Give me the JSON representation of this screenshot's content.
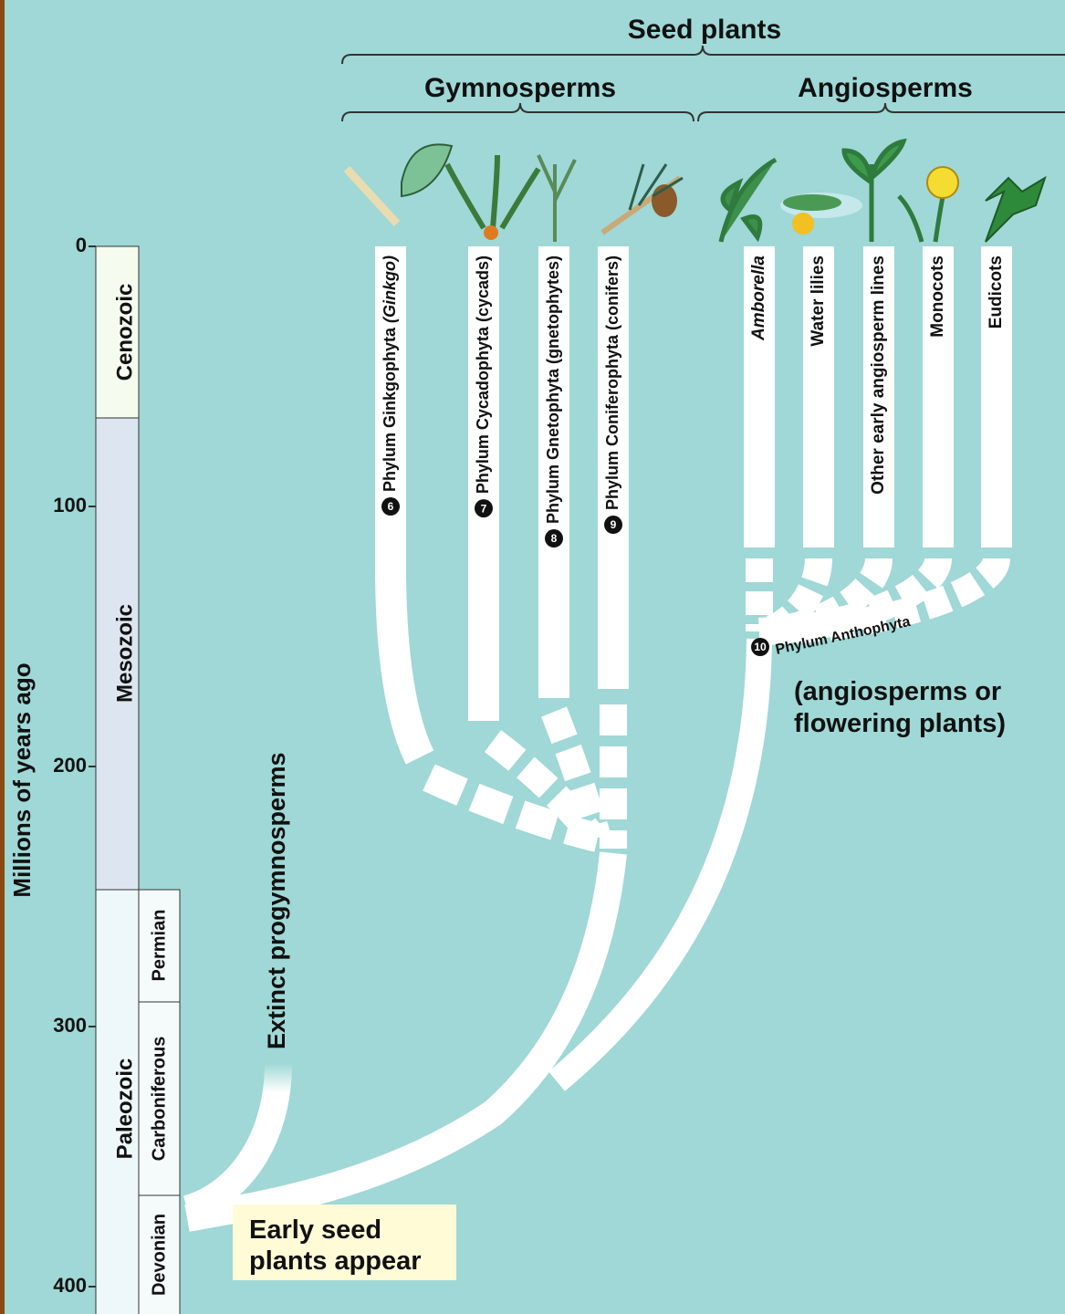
{
  "header": {
    "seed_plants": "Seed plants",
    "gymnosperms": "Gymnosperms",
    "angiosperms": "Angiosperms"
  },
  "axis": {
    "label": "Millions of years ago",
    "ticks": [
      0,
      100,
      200,
      300,
      400
    ]
  },
  "eras": [
    "Cenozoic",
    "Mesozoic",
    "Paleozoic"
  ],
  "periods": [
    "Permian",
    "Carboniferous",
    "Devonian"
  ],
  "gymnosperm_lineages": [
    {
      "number": "6",
      "name": "Phylum Ginkgophyta",
      "common": "(Ginkgo)"
    },
    {
      "number": "7",
      "name": "Phylum Cycadophyta",
      "common": "(cycads)"
    },
    {
      "number": "8",
      "name": "Phylum Gnetophyta",
      "common": "(gnetophytes)"
    },
    {
      "number": "9",
      "name": "Phylum Coniferophyta",
      "common": "(conifers)"
    }
  ],
  "angiosperm_lineages": [
    "Amborella",
    "Water lilies",
    "Other early angiosperm lines",
    "Monocots",
    "Eudicots"
  ],
  "anthophyta": {
    "number": "10",
    "name": "Phylum Anthophyta",
    "note": [
      "(angiosperms or",
      "flowering plants)"
    ]
  },
  "extinct": "Extinct progymnosperms",
  "origin": [
    "Early seed",
    "plants appear"
  ]
}
